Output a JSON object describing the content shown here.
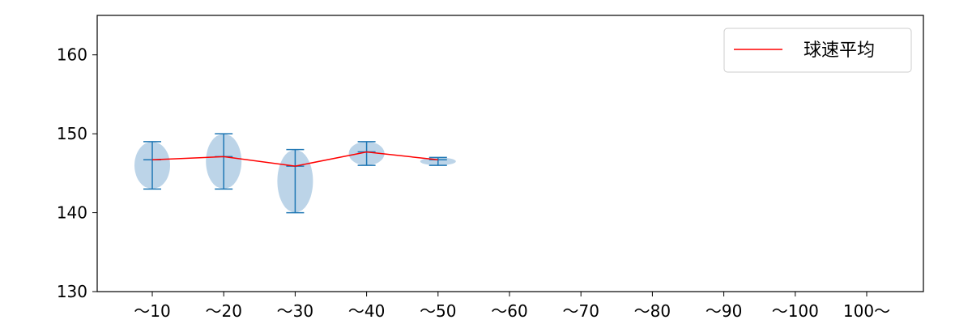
{
  "chart_data": {
    "type": "violin",
    "categories": [
      "〜10",
      "〜20",
      "〜30",
      "〜40",
      "〜50",
      "〜60",
      "〜70",
      "〜80",
      "〜90",
      "〜100",
      "100〜"
    ],
    "ylim": [
      130,
      165
    ],
    "yticks": [
      130,
      140,
      150,
      160
    ],
    "ytick_labels": [
      "130",
      "140",
      "150",
      "160"
    ],
    "grid": false,
    "legend_position": "top-right",
    "series": [
      {
        "name": "球速平均",
        "color": "#ff0000",
        "values": [
          146.7,
          147.1,
          145.9,
          147.7,
          146.7
        ]
      }
    ],
    "violins": [
      {
        "category": "〜10",
        "min": 143,
        "max": 149,
        "mean": 146.7
      },
      {
        "category": "〜20",
        "min": 143,
        "max": 150,
        "mean": 147.1
      },
      {
        "category": "〜30",
        "min": 140,
        "max": 148,
        "mean": 145.9
      },
      {
        "category": "〜40",
        "min": 146,
        "max": 149,
        "mean": 147.7
      },
      {
        "category": "〜50",
        "min": 146,
        "max": 147,
        "mean": 146.7
      }
    ],
    "colors": {
      "violin_fill": "#a6c5e0",
      "violin_line": "#1f77b4",
      "mean_line": "#ff0000"
    }
  }
}
